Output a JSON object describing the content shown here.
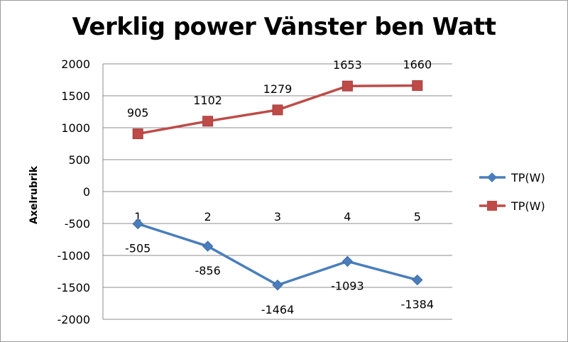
{
  "chart_data": {
    "type": "line",
    "title": "Verklig power Vänster ben Watt",
    "ylabel": "Axelrubrik",
    "xlabel": "",
    "categories": [
      "1",
      "2",
      "3",
      "4",
      "5"
    ],
    "ylim": [
      -2000,
      2000
    ],
    "yticks": [
      2000,
      1500,
      1000,
      500,
      0,
      -500,
      -1000,
      -1500,
      -2000
    ],
    "grid": true,
    "legend_position": "right",
    "series": [
      {
        "name": "TP(W)",
        "values": [
          -505,
          -856,
          -1464,
          -1093,
          -1384
        ],
        "color": "#4a7ebb",
        "marker": "diamond"
      },
      {
        "name": "TP(W)",
        "values": [
          905,
          1102,
          1279,
          1653,
          1660
        ],
        "color": "#be4b48",
        "marker": "square"
      }
    ]
  }
}
